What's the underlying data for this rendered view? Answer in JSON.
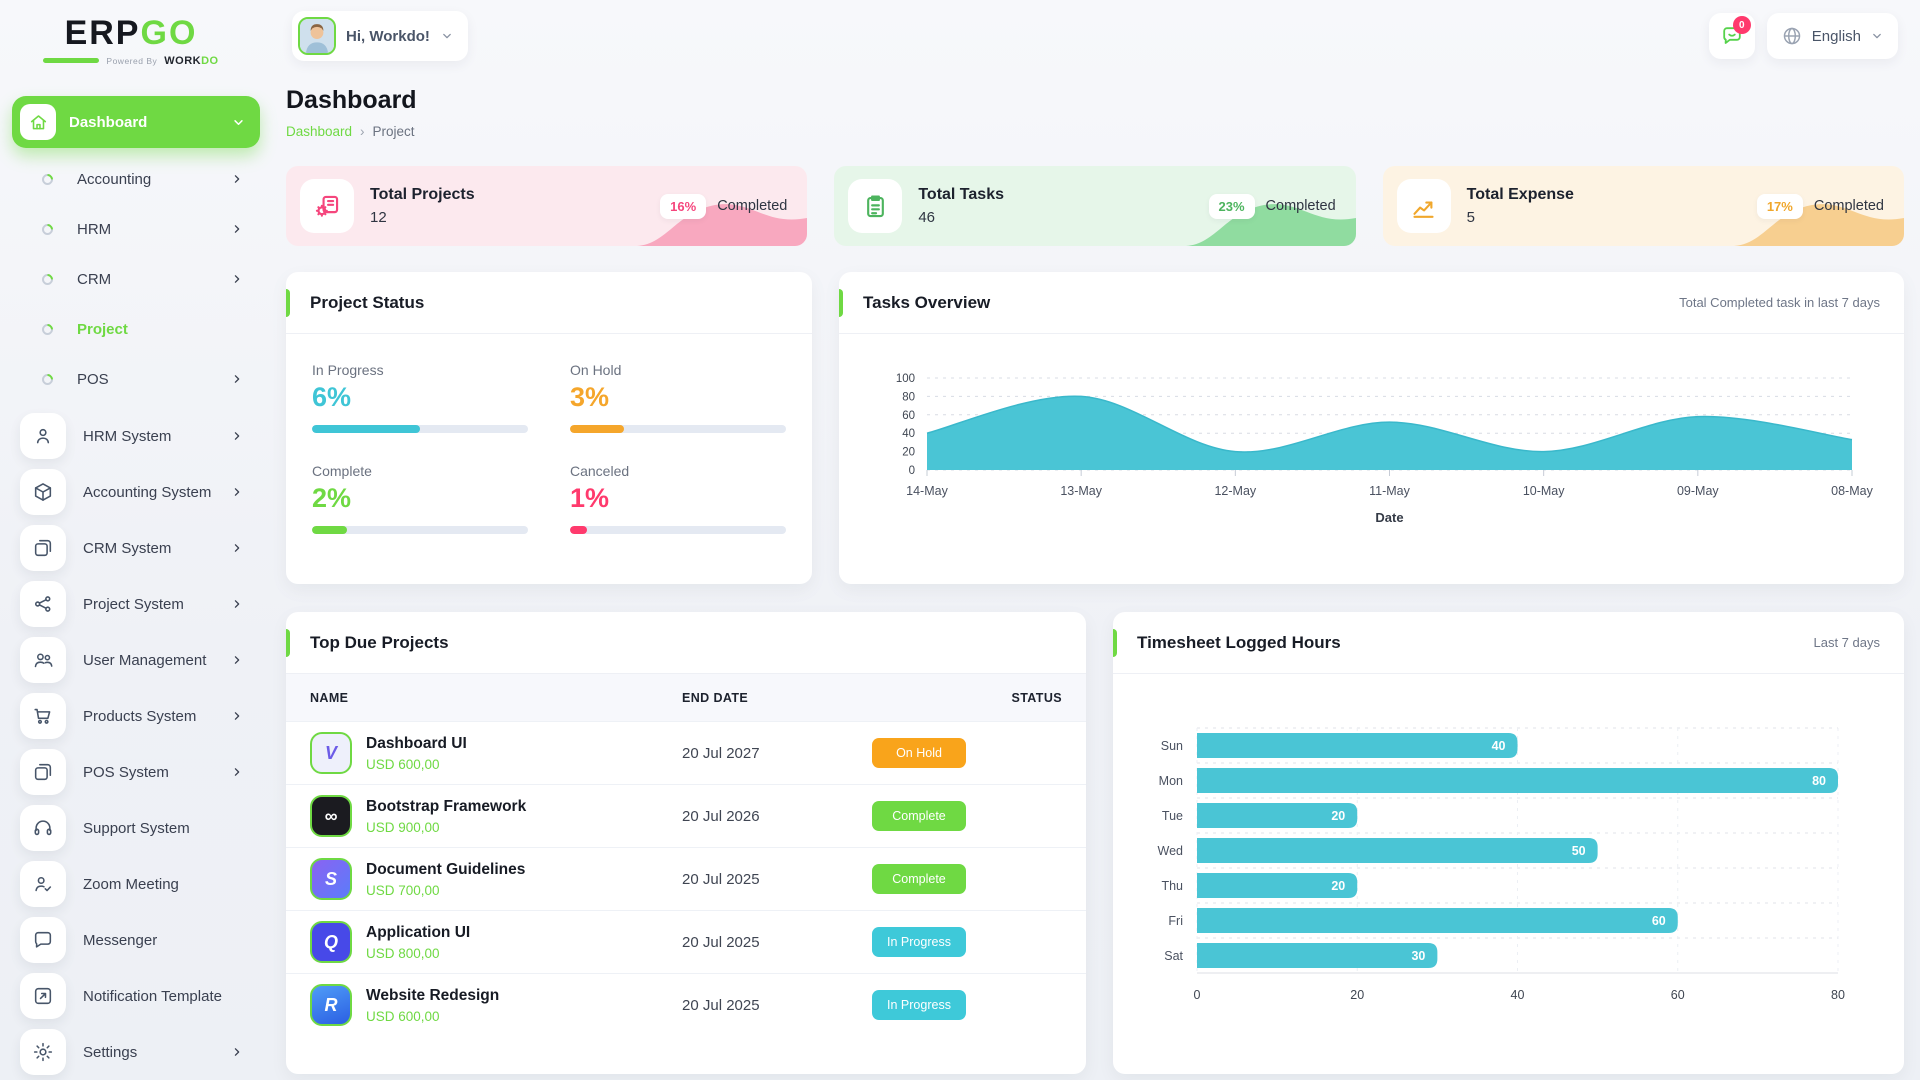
{
  "logo": {
    "erp": "ERP",
    "go": "GO",
    "powered_by": "Powered By",
    "brand_work": "WORK",
    "brand_do": "DO"
  },
  "topbar": {
    "greeting": "Hi, Workdo!",
    "notification_count": "0",
    "language": "English"
  },
  "page": {
    "title": "Dashboard",
    "breadcrumb_home": "Dashboard",
    "breadcrumb_separator": "›",
    "breadcrumb_current": "Project"
  },
  "sidebar": {
    "active_parent": {
      "label": "Dashboard",
      "icon": "home-icon"
    },
    "submenu": [
      {
        "label": "Accounting",
        "chevron": true,
        "active": false
      },
      {
        "label": "HRM",
        "chevron": true,
        "active": false
      },
      {
        "label": "CRM",
        "chevron": true,
        "active": false
      },
      {
        "label": "Project",
        "chevron": false,
        "active": true
      },
      {
        "label": "POS",
        "chevron": true,
        "active": false
      }
    ],
    "items": [
      {
        "label": "HRM System",
        "icon": "person-icon",
        "chevron": true
      },
      {
        "label": "Accounting System",
        "icon": "cube-icon",
        "chevron": true
      },
      {
        "label": "CRM System",
        "icon": "frames-icon",
        "chevron": true
      },
      {
        "label": "Project System",
        "icon": "share-icon",
        "chevron": true
      },
      {
        "label": "User Management",
        "icon": "users-icon",
        "chevron": true
      },
      {
        "label": "Products System",
        "icon": "cart-icon",
        "chevron": true
      },
      {
        "label": "POS System",
        "icon": "frames-icon",
        "chevron": true
      },
      {
        "label": "Support System",
        "icon": "headset-icon",
        "chevron": false
      },
      {
        "label": "Zoom Meeting",
        "icon": "person-check-icon",
        "chevron": false
      },
      {
        "label": "Messenger",
        "icon": "chat-icon",
        "chevron": false
      },
      {
        "label": "Notification Template",
        "icon": "template-icon",
        "chevron": false
      },
      {
        "label": "Settings",
        "icon": "gear-icon",
        "chevron": true
      }
    ]
  },
  "stats": [
    {
      "title": "Total Projects",
      "value": "12",
      "percent": "16%",
      "percent_label": "Completed",
      "icon": "projects-icon",
      "bg": "#fce9ee",
      "wave": "#f8a8bf",
      "accent": "#f5467d"
    },
    {
      "title": "Total Tasks",
      "value": "46",
      "percent": "23%",
      "percent_label": "Completed",
      "icon": "tasks-icon",
      "bg": "#e6f6e9",
      "wave": "#90dca0",
      "accent": "#4db45e"
    },
    {
      "title": "Total Expense",
      "value": "5",
      "percent": "17%",
      "percent_label": "Completed",
      "icon": "expense-icon",
      "bg": "#fdf3e3",
      "wave": "#f7cf90",
      "accent": "#f0a72c"
    }
  ],
  "project_status": {
    "title": "Project Status",
    "items": [
      {
        "label": "In Progress",
        "value": "6%",
        "color": "#3fc5d6",
        "fill_pct": 50
      },
      {
        "label": "On Hold",
        "value": "3%",
        "color": "#f5a62b",
        "fill_pct": 25
      },
      {
        "label": "Complete",
        "value": "2%",
        "color": "#6fd943",
        "fill_pct": 16
      },
      {
        "label": "Canceled",
        "value": "1%",
        "color": "#ff3a6d",
        "fill_pct": 8
      }
    ]
  },
  "top_due_projects": {
    "title": "Top Due Projects",
    "columns": [
      "NAME",
      "END DATE",
      "STATUS"
    ],
    "rows": [
      {
        "name": "Dashboard UI",
        "amount": "USD 600,00",
        "end_date": "20 Jul 2027",
        "status": "On Hold",
        "logo_glyph": "V",
        "logo_bg": "#eef0fb",
        "logo_fg": "#6c5ce7"
      },
      {
        "name": "Bootstrap Framework",
        "amount": "USD 900,00",
        "end_date": "20 Jul 2026",
        "status": "Complete",
        "logo_glyph": "∞",
        "logo_bg": "#1b1b20",
        "logo_fg": "#ffffff"
      },
      {
        "name": "Document Guidelines",
        "amount": "USD 700,00",
        "end_date": "20 Jul 2025",
        "status": "Complete",
        "logo_glyph": "S",
        "logo_bg": "linear-gradient(135deg,#8a63f2,#5b7cfa)",
        "logo_fg": "#ffffff"
      },
      {
        "name": "Application UI",
        "amount": "USD 800,00",
        "end_date": "20 Jul 2025",
        "status": "In Progress",
        "logo_glyph": "Q",
        "logo_bg": "#4749e8",
        "logo_fg": "#ffffff"
      },
      {
        "name": "Website Redesign",
        "amount": "USD 600,00",
        "end_date": "20 Jul 2025",
        "status": "In Progress",
        "logo_glyph": "R",
        "logo_bg": "linear-gradient(160deg,#4f9cf7,#2b5fe3)",
        "logo_fg": "#ffffff"
      }
    ],
    "status_colors": {
      "On Hold": "#f9a41b",
      "Complete": "#6fd943",
      "In Progress": "#3ec9d9"
    }
  },
  "chart_data": [
    {
      "id": "tasks_overview",
      "type": "area",
      "title": "Tasks Overview",
      "note": "Total Completed task in last 7 days",
      "x": [
        "14-May",
        "13-May",
        "12-May",
        "11-May",
        "10-May",
        "09-May",
        "08-May"
      ],
      "values": [
        40,
        80,
        20,
        52,
        20,
        58,
        33
      ],
      "xlabel": "Date",
      "ylim": [
        0,
        100
      ],
      "yticks": [
        0,
        20,
        40,
        60,
        80,
        100
      ],
      "grid": "dashed-horizontal",
      "legend": "none",
      "color": "#4ac5d5"
    },
    {
      "id": "timesheet",
      "type": "bar",
      "orientation": "horizontal",
      "title": "Timesheet Logged Hours",
      "note": "Last 7 days",
      "categories": [
        "Sun",
        "Mon",
        "Tue",
        "Wed",
        "Thu",
        "Fri",
        "Sat"
      ],
      "values": [
        40,
        80,
        20,
        50,
        20,
        60,
        30
      ],
      "xlim": [
        0,
        80
      ],
      "xticks": [
        0,
        20,
        40,
        60,
        80
      ],
      "grid": "dashed",
      "value_labels": true,
      "color": "#4ac5d5"
    }
  ]
}
